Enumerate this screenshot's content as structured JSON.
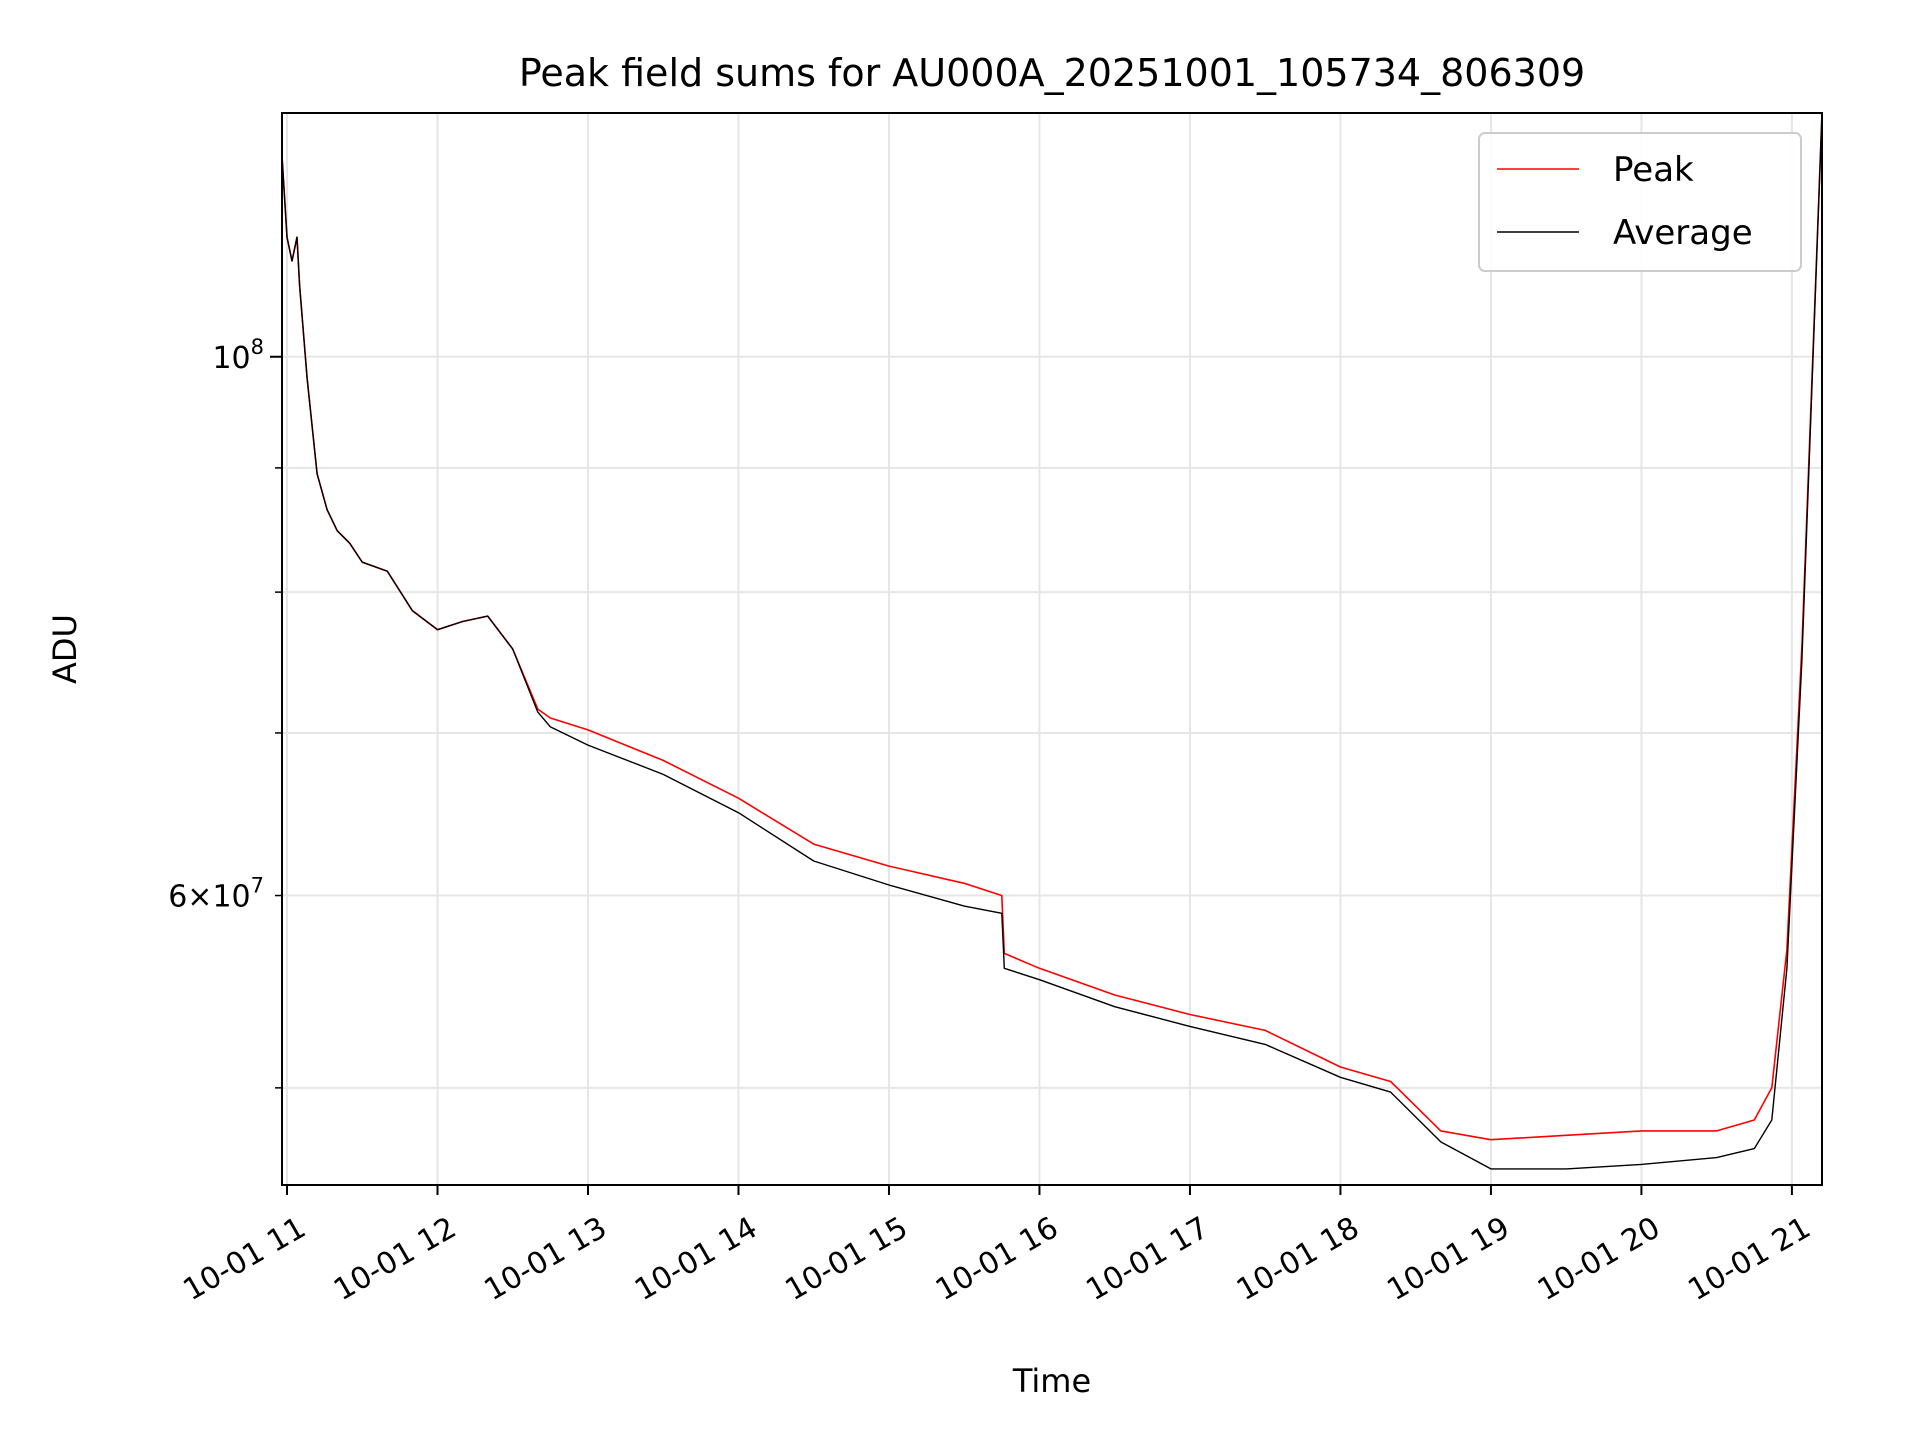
{
  "chart_data": {
    "type": "line",
    "title": "Peak field sums for AU000A_20251001_105734_806309",
    "xlabel": "Time",
    "ylabel": "ADU",
    "y_scale": "log",
    "ylim": [
      45600000,
      126000000
    ],
    "xlim": [
      "2025-10-01 10:58",
      "2025-10-01 21:12"
    ],
    "x_tick_labels": [
      "10-01 11",
      "10-01 12",
      "10-01 13",
      "10-01 14",
      "10-01 15",
      "10-01 16",
      "10-01 17",
      "10-01 18",
      "10-01 19",
      "10-01 20",
      "10-01 21"
    ],
    "x_ticks": [
      "2025-10-01 11:00",
      "2025-10-01 12:00",
      "2025-10-01 13:00",
      "2025-10-01 14:00",
      "2025-10-01 15:00",
      "2025-10-01 16:00",
      "2025-10-01 17:00",
      "2025-10-01 18:00",
      "2025-10-01 19:00",
      "2025-10-01 20:00",
      "2025-10-01 21:00"
    ],
    "y_major_ticks": [
      {
        "value": 100000000,
        "base": "10",
        "exp": "8"
      }
    ],
    "y_minor_ticks": [
      {
        "value": 60000000,
        "label_mant": "6",
        "label_base": "10",
        "label_exp": "7"
      },
      {
        "value": 50000000
      },
      {
        "value": 70000000
      },
      {
        "value": 80000000
      },
      {
        "value": 90000000
      }
    ],
    "grid": true,
    "legend_placement": "top-right",
    "series": [
      {
        "name": "Peak",
        "color": "#ff0000",
        "x": [
          "2025-10-01 10:58",
          "2025-10-01 11:00",
          "2025-10-01 11:02",
          "2025-10-01 11:04",
          "2025-10-01 11:05",
          "2025-10-01 11:08",
          "2025-10-01 11:12",
          "2025-10-01 11:16",
          "2025-10-01 11:20",
          "2025-10-01 11:25",
          "2025-10-01 11:30",
          "2025-10-01 11:40",
          "2025-10-01 11:50",
          "2025-10-01 12:00",
          "2025-10-01 12:10",
          "2025-10-01 12:20",
          "2025-10-01 12:30",
          "2025-10-01 12:40",
          "2025-10-01 12:45",
          "2025-10-01 13:00",
          "2025-10-01 13:30",
          "2025-10-01 14:00",
          "2025-10-01 14:30",
          "2025-10-01 15:00",
          "2025-10-01 15:30",
          "2025-10-01 15:45",
          "2025-10-01 15:46",
          "2025-10-01 16:00",
          "2025-10-01 16:30",
          "2025-10-01 17:00",
          "2025-10-01 17:30",
          "2025-10-01 18:00",
          "2025-10-01 18:20",
          "2025-10-01 18:40",
          "2025-10-01 19:00",
          "2025-10-01 19:30",
          "2025-10-01 20:00",
          "2025-10-01 20:30",
          "2025-10-01 20:45",
          "2025-10-01 20:52",
          "2025-10-01 20:58",
          "2025-10-01 21:04",
          "2025-10-01 21:12"
        ],
        "y": [
          121000000,
          112000000,
          109500000,
          112000000,
          107000000,
          98000000,
          89500000,
          86500000,
          84800000,
          83800000,
          82300000,
          81600000,
          78600000,
          77200000,
          77800000,
          78200000,
          75800000,
          71600000,
          71000000,
          70200000,
          68200000,
          65800000,
          63000000,
          61700000,
          60700000,
          60000000,
          56800000,
          56000000,
          54600000,
          53600000,
          52800000,
          51000000,
          50300000,
          48000000,
          47600000,
          47800000,
          48000000,
          48000000,
          48500000,
          50000000,
          57000000,
          76000000,
          126000000
        ]
      },
      {
        "name": "Average",
        "color": "#000000",
        "x": [
          "2025-10-01 10:58",
          "2025-10-01 11:00",
          "2025-10-01 11:02",
          "2025-10-01 11:04",
          "2025-10-01 11:05",
          "2025-10-01 11:08",
          "2025-10-01 11:12",
          "2025-10-01 11:16",
          "2025-10-01 11:20",
          "2025-10-01 11:25",
          "2025-10-01 11:30",
          "2025-10-01 11:40",
          "2025-10-01 11:50",
          "2025-10-01 12:00",
          "2025-10-01 12:10",
          "2025-10-01 12:20",
          "2025-10-01 12:30",
          "2025-10-01 12:40",
          "2025-10-01 12:45",
          "2025-10-01 13:00",
          "2025-10-01 13:30",
          "2025-10-01 14:00",
          "2025-10-01 14:30",
          "2025-10-01 15:00",
          "2025-10-01 15:30",
          "2025-10-01 15:45",
          "2025-10-01 15:46",
          "2025-10-01 16:00",
          "2025-10-01 16:30",
          "2025-10-01 17:00",
          "2025-10-01 17:30",
          "2025-10-01 18:00",
          "2025-10-01 18:20",
          "2025-10-01 18:40",
          "2025-10-01 19:00",
          "2025-10-01 19:30",
          "2025-10-01 20:00",
          "2025-10-01 20:30",
          "2025-10-01 20:45",
          "2025-10-01 20:52",
          "2025-10-01 20:58",
          "2025-10-01 21:04",
          "2025-10-01 21:12"
        ],
        "y": [
          121000000,
          112000000,
          109500000,
          112000000,
          107000000,
          98000000,
          89500000,
          86500000,
          84800000,
          83800000,
          82300000,
          81600000,
          78600000,
          77200000,
          77800000,
          78200000,
          75800000,
          71400000,
          70400000,
          69200000,
          67300000,
          64900000,
          62000000,
          60600000,
          59400000,
          59000000,
          56000000,
          55400000,
          54000000,
          53000000,
          52100000,
          50500000,
          49800000,
          47500000,
          46300000,
          46300000,
          46500000,
          46800000,
          47200000,
          48500000,
          56000000,
          75000000,
          126000000
        ]
      }
    ]
  }
}
